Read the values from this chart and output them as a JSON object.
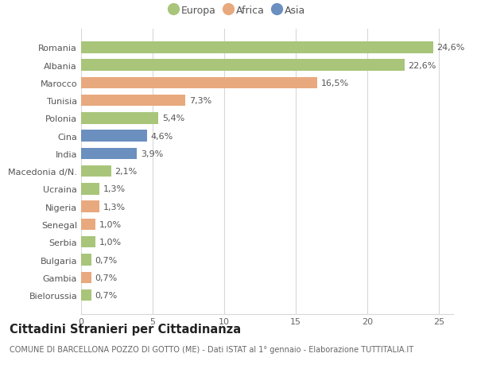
{
  "categories": [
    "Bielorussia",
    "Gambia",
    "Bulgaria",
    "Serbia",
    "Senegal",
    "Nigeria",
    "Ucraina",
    "Macedonia d/N.",
    "India",
    "Cina",
    "Polonia",
    "Tunisia",
    "Marocco",
    "Albania",
    "Romania"
  ],
  "values": [
    0.7,
    0.7,
    0.7,
    1.0,
    1.0,
    1.3,
    1.3,
    2.1,
    3.9,
    4.6,
    5.4,
    7.3,
    16.5,
    22.6,
    24.6
  ],
  "labels": [
    "0,7%",
    "0,7%",
    "0,7%",
    "1,0%",
    "1,0%",
    "1,3%",
    "1,3%",
    "2,1%",
    "3,9%",
    "4,6%",
    "5,4%",
    "7,3%",
    "16,5%",
    "22,6%",
    "24,6%"
  ],
  "colors": [
    "#a8c57a",
    "#e8a97e",
    "#a8c57a",
    "#a8c57a",
    "#e8a97e",
    "#e8a97e",
    "#a8c57a",
    "#a8c57a",
    "#6b8fbf",
    "#6b8fbf",
    "#a8c57a",
    "#e8a97e",
    "#e8a97e",
    "#a8c57a",
    "#a8c57a"
  ],
  "legend_labels": [
    "Europa",
    "Africa",
    "Asia"
  ],
  "legend_colors": [
    "#a8c57a",
    "#e8a97e",
    "#6b8fbf"
  ],
  "title": "Cittadini Stranieri per Cittadinanza",
  "subtitle": "COMUNE DI BARCELLONA POZZO DI GOTTO (ME) - Dati ISTAT al 1° gennaio - Elaborazione TUTTITALIA.IT",
  "xlim": [
    0,
    26
  ],
  "xticks": [
    0,
    5,
    10,
    15,
    20,
    25
  ],
  "background_color": "#ffffff",
  "grid_color": "#d8d8d8",
  "bar_height": 0.65,
  "label_fontsize": 8,
  "title_fontsize": 10.5,
  "subtitle_fontsize": 7,
  "tick_fontsize": 8,
  "legend_fontsize": 9
}
